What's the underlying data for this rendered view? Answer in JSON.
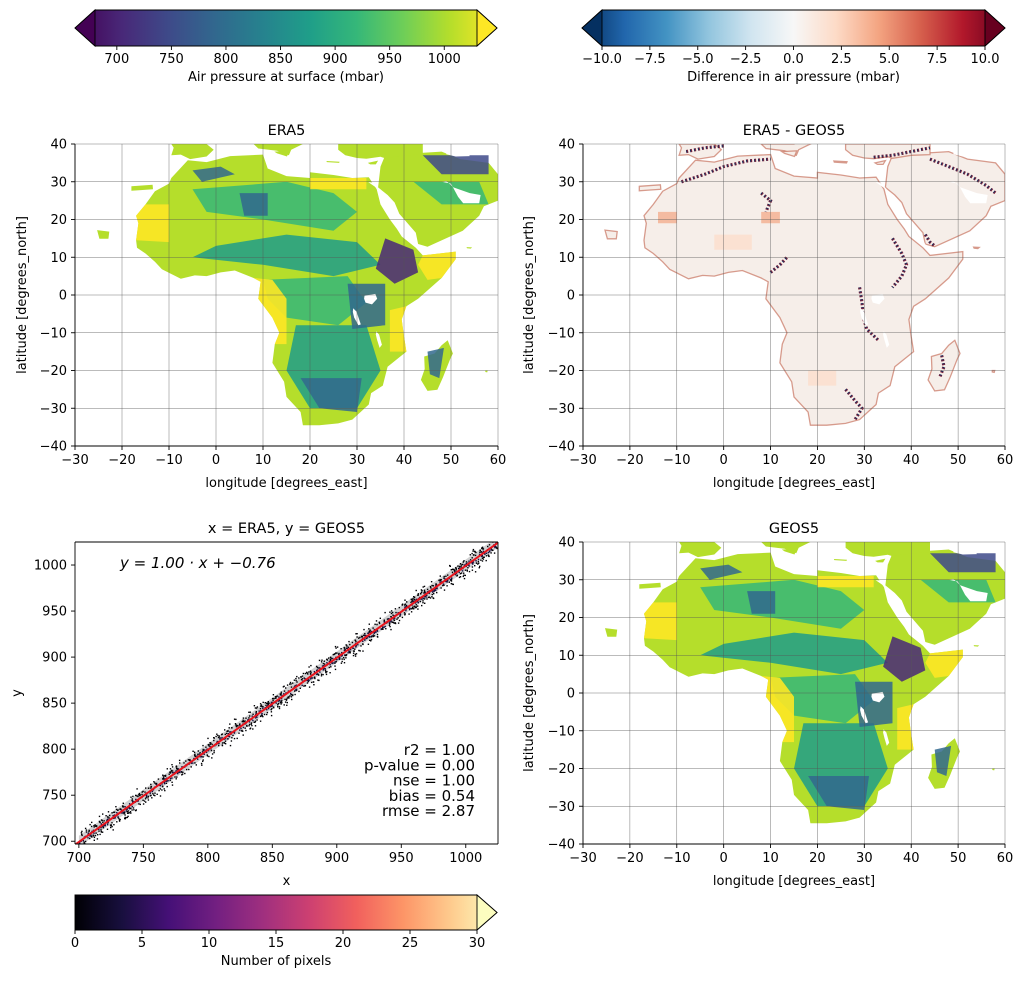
{
  "colorbars": {
    "pressure": {
      "label": "Air pressure at surface (mbar)",
      "range": [
        680,
        1030
      ],
      "ticks": [
        "700",
        "750",
        "800",
        "850",
        "900",
        "950",
        "1000"
      ],
      "tick_values": [
        700,
        750,
        800,
        850,
        900,
        950,
        1000
      ],
      "colormap": [
        "#440154",
        "#482878",
        "#3e4a89",
        "#31688e",
        "#26828e",
        "#1f9e89",
        "#35b779",
        "#6ece58",
        "#b5de2b",
        "#fde725"
      ]
    },
    "difference": {
      "label": "Difference in air pressure (mbar)",
      "range": [
        -10,
        10
      ],
      "ticks": [
        "−10.0",
        "−7.5",
        "−5.0",
        "−2.5",
        "0.0",
        "2.5",
        "5.0",
        "7.5",
        "10.0"
      ],
      "tick_values": [
        -10,
        -7.5,
        -5,
        -2.5,
        0,
        2.5,
        5,
        7.5,
        10
      ],
      "colormap": [
        "#053061",
        "#2166ac",
        "#4393c3",
        "#92c5de",
        "#d1e5f0",
        "#f7f7f7",
        "#fddbc7",
        "#f4a582",
        "#d6604d",
        "#b2182b",
        "#67001f"
      ]
    },
    "pixels": {
      "label": "Number of pixels",
      "range": [
        0,
        30
      ],
      "ticks": [
        "0",
        "5",
        "10",
        "15",
        "20",
        "25",
        "30"
      ],
      "tick_values": [
        0,
        5,
        10,
        15,
        20,
        25,
        30
      ],
      "colormap": [
        "#000004",
        "#180f3e",
        "#451077",
        "#721f81",
        "#9f2f7f",
        "#cd4071",
        "#f1605d",
        "#fd9567",
        "#feca8d",
        "#fcfdbf"
      ]
    }
  },
  "chart_data": [
    {
      "type": "heatmap",
      "title": "ERA5",
      "xlabel": "longitude [degrees_east]",
      "ylabel": "latitude [degrees_north]",
      "xlim": [
        -30,
        60
      ],
      "ylim": [
        -40,
        40
      ],
      "xticks": [
        "−30",
        "−20",
        "−10",
        "0",
        "10",
        "20",
        "30",
        "40",
        "50",
        "60"
      ],
      "xtick_values": [
        -30,
        -20,
        -10,
        0,
        10,
        20,
        30,
        40,
        50,
        60
      ],
      "yticks": [
        "−40",
        "−30",
        "−20",
        "−10",
        "0",
        "10",
        "20",
        "30",
        "40"
      ],
      "ytick_values": [
        -40,
        -30,
        -20,
        -10,
        0,
        10,
        20,
        30,
        40
      ],
      "grid": true,
      "colorbar": "pressure"
    },
    {
      "type": "heatmap",
      "title": "ERA5 - GEOS5",
      "xlabel": "longitude [degrees_east]",
      "ylabel": "latitude [degrees_north]",
      "xlim": [
        -30,
        60
      ],
      "ylim": [
        -40,
        40
      ],
      "xticks": [
        "−30",
        "−20",
        "−10",
        "0",
        "10",
        "20",
        "30",
        "40",
        "50",
        "60"
      ],
      "xtick_values": [
        -30,
        -20,
        -10,
        0,
        10,
        20,
        30,
        40,
        50,
        60
      ],
      "yticks": [
        "−40",
        "−30",
        "−20",
        "−10",
        "0",
        "10",
        "20",
        "30",
        "40"
      ],
      "ytick_values": [
        -40,
        -30,
        -20,
        -10,
        0,
        10,
        20,
        30,
        40
      ],
      "grid": true,
      "colorbar": "difference"
    },
    {
      "type": "scatter",
      "title": "x = ERA5, y = GEOS5",
      "xlabel": "x",
      "ylabel": "y",
      "xlim": [
        697,
        1025
      ],
      "ylim": [
        697,
        1025
      ],
      "xticks": [
        "700",
        "750",
        "800",
        "850",
        "900",
        "950",
        "1000"
      ],
      "xtick_values": [
        700,
        750,
        800,
        850,
        900,
        950,
        1000
      ],
      "yticks": [
        "700",
        "750",
        "800",
        "850",
        "900",
        "950",
        "1000"
      ],
      "ytick_values": [
        700,
        750,
        800,
        850,
        900,
        950,
        1000
      ],
      "grid": false,
      "colorbar": "pixels",
      "regression": {
        "slope": 1.0,
        "intercept": -0.76,
        "color": "#e8141c"
      },
      "equation": "y = 1.00 · x + −0.76",
      "stats": [
        "r2 = 1.00",
        "p-value = 0.00",
        "nse = 1.00",
        "bias = 0.54",
        "rmse = 2.87"
      ]
    },
    {
      "type": "heatmap",
      "title": "GEOS5",
      "xlabel": "longitude [degrees_east]",
      "ylabel": "latitude [degrees_north]",
      "xlim": [
        -30,
        60
      ],
      "ylim": [
        -40,
        40
      ],
      "xticks": [
        "−30",
        "−20",
        "−10",
        "0",
        "10",
        "20",
        "30",
        "40",
        "50",
        "60"
      ],
      "xtick_values": [
        -30,
        -20,
        -10,
        0,
        10,
        20,
        30,
        40,
        50,
        60
      ],
      "yticks": [
        "−40",
        "−30",
        "−20",
        "−10",
        "0",
        "10",
        "20",
        "30",
        "40"
      ],
      "ytick_values": [
        -40,
        -30,
        -20,
        -10,
        0,
        10,
        20,
        30,
        40
      ],
      "grid": true,
      "colorbar": "pressure"
    }
  ]
}
